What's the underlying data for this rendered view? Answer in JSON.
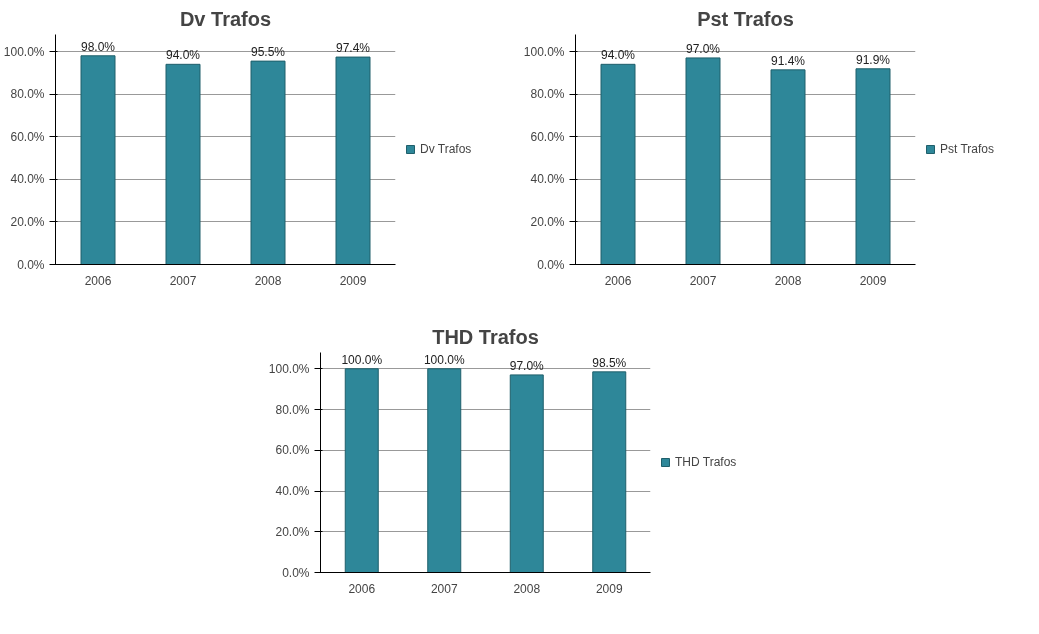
{
  "chart_data": [
    {
      "type": "bar",
      "title": "Dv Trafos",
      "categories": [
        "2006",
        "2007",
        "2008",
        "2009"
      ],
      "series": [
        {
          "name": "Dv Trafos",
          "color": "#2e8799",
          "values": [
            98.0,
            94.0,
            95.5,
            97.4
          ],
          "value_labels": [
            "98.0%",
            "94.0%",
            "95.5%",
            "97.4%"
          ]
        }
      ],
      "ylim": [
        0,
        108
      ],
      "yticks": [
        {
          "value": 0,
          "label": "0.0%"
        },
        {
          "value": 20,
          "label": "20.0%"
        },
        {
          "value": 40,
          "label": "40.0%"
        },
        {
          "value": 60,
          "label": "60.0%"
        },
        {
          "value": 80,
          "label": "80.0%"
        },
        {
          "value": 100,
          "label": "100.0%"
        }
      ],
      "grid": "y",
      "legend": "right"
    },
    {
      "type": "bar",
      "title": "Pst Trafos",
      "categories": [
        "2006",
        "2007",
        "2008",
        "2009"
      ],
      "series": [
        {
          "name": "Pst Trafos",
          "color": "#2e8799",
          "values": [
            94.0,
            97.0,
            91.4,
            91.9
          ],
          "value_labels": [
            "94.0%",
            "97.0%",
            "91.4%",
            "91.9%"
          ]
        }
      ],
      "ylim": [
        0,
        108
      ],
      "yticks": [
        {
          "value": 0,
          "label": "0.0%"
        },
        {
          "value": 20,
          "label": "20.0%"
        },
        {
          "value": 40,
          "label": "40.0%"
        },
        {
          "value": 60,
          "label": "60.0%"
        },
        {
          "value": 80,
          "label": "80.0%"
        },
        {
          "value": 100,
          "label": "100.0%"
        }
      ],
      "grid": "y",
      "legend": "right"
    },
    {
      "type": "bar",
      "title": "THD Trafos",
      "categories": [
        "2006",
        "2007",
        "2008",
        "2009"
      ],
      "series": [
        {
          "name": "THD Trafos",
          "color": "#2e8799",
          "values": [
            100.0,
            100.0,
            97.0,
            98.5
          ],
          "value_labels": [
            "100.0%",
            "100.0%",
            "97.0%",
            "98.5%"
          ]
        }
      ],
      "ylim": [
        0,
        108
      ],
      "yticks": [
        {
          "value": 0,
          "label": "0.0%"
        },
        {
          "value": 20,
          "label": "20.0%"
        },
        {
          "value": 40,
          "label": "40.0%"
        },
        {
          "value": 60,
          "label": "60.0%"
        },
        {
          "value": 80,
          "label": "80.0%"
        },
        {
          "value": 100,
          "label": "100.0%"
        }
      ],
      "grid": "y",
      "legend": "right"
    }
  ]
}
